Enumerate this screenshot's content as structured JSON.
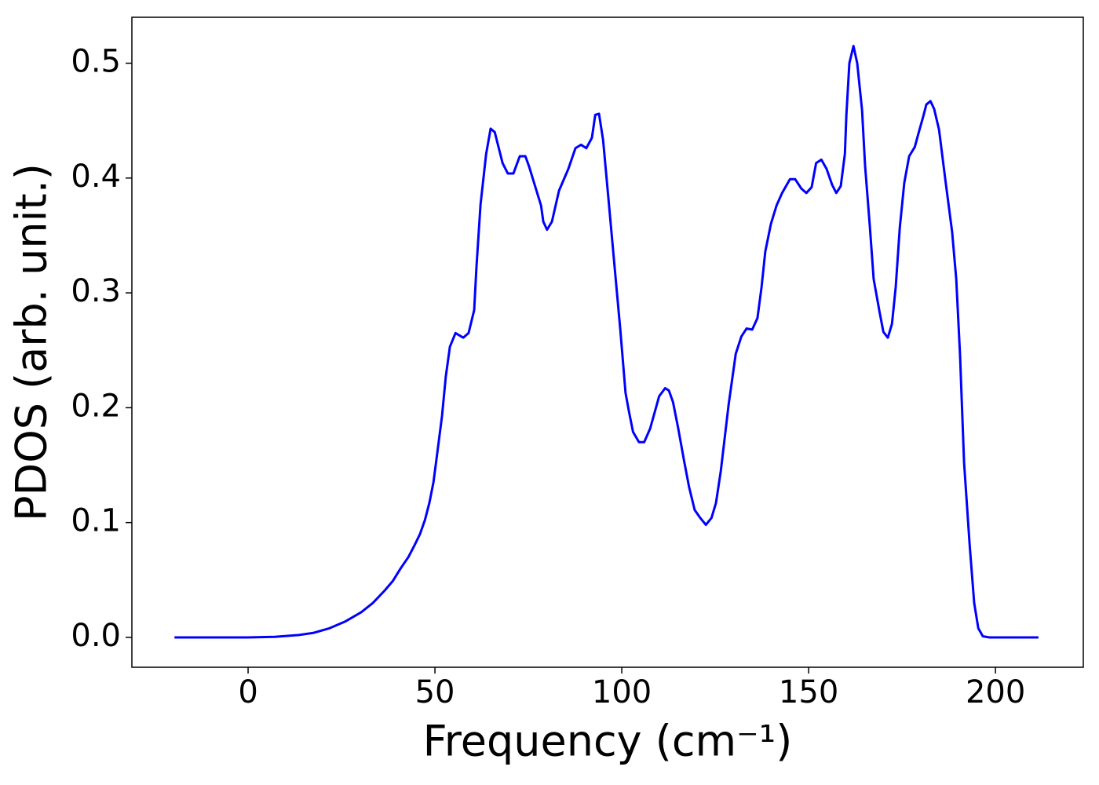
{
  "chart_data": {
    "type": "line",
    "xlabel": "Frequency (cm⁻¹)",
    "ylabel": "PDOS (arb. unit.)",
    "color": "#0000ff",
    "xlim": [
      -31.1,
      223.5
    ],
    "ylim": [
      -0.026,
      0.54
    ],
    "xticks": [
      0,
      50,
      100,
      150,
      200
    ],
    "yticks": [
      {
        "value": 0,
        "label": "0.0"
      },
      0.1,
      0.2,
      0.3,
      0.4,
      0.5
    ],
    "grid": false,
    "x": [
      -19.7,
      0,
      7.1,
      13.4,
      17.6,
      21.8,
      26.1,
      30.3,
      33.4,
      36.6,
      38.7,
      40.8,
      42.9,
      44.5,
      46,
      47.3,
      48.5,
      49.6,
      50.6,
      51.9,
      52.9,
      54,
      55.5,
      57.6,
      59,
      60.5,
      61.1,
      62.2,
      63.7,
      64.9,
      66,
      68.1,
      69.5,
      71,
      72.7,
      74.2,
      75.2,
      76.7,
      78.4,
      79,
      80,
      81.3,
      83.2,
      85.7,
      87.6,
      89.1,
      90.5,
      92,
      92.9,
      93.9,
      95,
      96.4,
      97.9,
      99.6,
      101,
      101.9,
      103,
      104.6,
      106,
      107.6,
      110,
      111.6,
      112.6,
      113.7,
      115.1,
      116.6,
      118,
      119.5,
      121,
      122.5,
      124,
      125.2,
      126.5,
      128.6,
      130.5,
      132,
      133.4,
      134.9,
      136.3,
      137.4,
      138.4,
      139.9,
      141.4,
      142.9,
      145,
      146.4,
      148,
      149.4,
      150.8,
      152,
      153.4,
      154.8,
      156.3,
      157.4,
      158.6,
      159.7,
      160.1,
      160.9,
      162,
      163,
      164.3,
      165.1,
      166.4,
      167.4,
      169,
      170,
      171.2,
      172.3,
      173.3,
      174.4,
      175.6,
      176.9,
      178.4,
      179.4,
      180.7,
      181.5,
      182.6,
      183.6,
      184.9,
      186.6,
      188.4,
      189.5,
      190.5,
      191.6,
      193.1,
      194.3,
      195.4,
      196.6,
      198.3,
      211.5
    ],
    "values": [
      0,
      0,
      0.0005,
      0.002,
      0.004,
      0.008,
      0.014,
      0.022,
      0.03,
      0.041,
      0.049,
      0.06,
      0.07,
      0.08,
      0.09,
      0.102,
      0.117,
      0.135,
      0.16,
      0.193,
      0.227,
      0.253,
      0.265,
      0.261,
      0.265,
      0.285,
      0.322,
      0.377,
      0.421,
      0.443,
      0.44,
      0.413,
      0.404,
      0.404,
      0.419,
      0.419,
      0.41,
      0.394,
      0.376,
      0.362,
      0.355,
      0.362,
      0.389,
      0.408,
      0.426,
      0.429,
      0.426,
      0.435,
      0.455,
      0.456,
      0.433,
      0.383,
      0.329,
      0.268,
      0.213,
      0.197,
      0.179,
      0.17,
      0.17,
      0.182,
      0.21,
      0.217,
      0.215,
      0.205,
      0.182,
      0.155,
      0.131,
      0.111,
      0.104,
      0.098,
      0.104,
      0.117,
      0.145,
      0.203,
      0.247,
      0.262,
      0.269,
      0.268,
      0.278,
      0.305,
      0.336,
      0.36,
      0.376,
      0.387,
      0.399,
      0.399,
      0.391,
      0.387,
      0.392,
      0.413,
      0.416,
      0.408,
      0.394,
      0.387,
      0.393,
      0.421,
      0.455,
      0.5,
      0.515,
      0.5,
      0.459,
      0.411,
      0.357,
      0.312,
      0.283,
      0.266,
      0.261,
      0.273,
      0.305,
      0.357,
      0.396,
      0.419,
      0.427,
      0.439,
      0.454,
      0.464,
      0.467,
      0.46,
      0.442,
      0.398,
      0.353,
      0.312,
      0.247,
      0.152,
      0.08,
      0.03,
      0.008,
      0.001,
      0,
      0
    ]
  }
}
